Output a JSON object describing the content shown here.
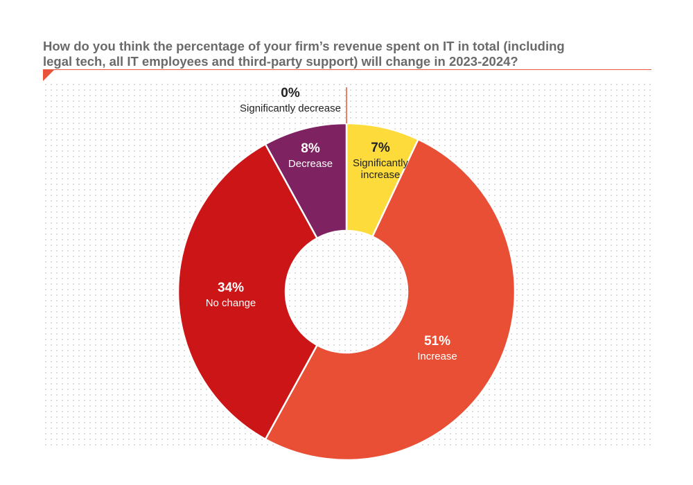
{
  "title_lines": [
    "How do you think the percentage of your firm’s revenue spent on IT in total (including",
    "legal tech, all IT employees and third-party support) will change in 2023-2024?"
  ],
  "colors": {
    "accent": "#e8543a",
    "title": "#6a6a6a"
  },
  "chart_data": {
    "type": "pie",
    "donut": true,
    "title": "How do you think the percentage of your firm’s revenue spent on IT in total (including legal tech, all IT employees and third-party support) will change in 2023-2024?",
    "categories": [
      "Significantly increase",
      "Increase",
      "No change",
      "Decrease",
      "Significantly decrease"
    ],
    "values": [
      7,
      51,
      34,
      8,
      0
    ],
    "labels": [
      {
        "pct": "7%",
        "name": "Significantly increase",
        "name_lines": [
          "Significantly",
          "increase"
        ]
      },
      {
        "pct": "51%",
        "name": "Increase",
        "name_lines": [
          "Increase"
        ]
      },
      {
        "pct": "34%",
        "name": "No change",
        "name_lines": [
          "No change"
        ]
      },
      {
        "pct": "8%",
        "name": "Decrease",
        "name_lines": [
          "Decrease"
        ]
      },
      {
        "pct": "0%",
        "name": "Significantly decrease",
        "name_lines": [
          "Significantly decrease"
        ]
      }
    ],
    "colors": [
      "#fddb3a",
      "#e84f35",
      "#cc1517",
      "#7f2262",
      "#e8543a"
    ],
    "legend": "none"
  }
}
